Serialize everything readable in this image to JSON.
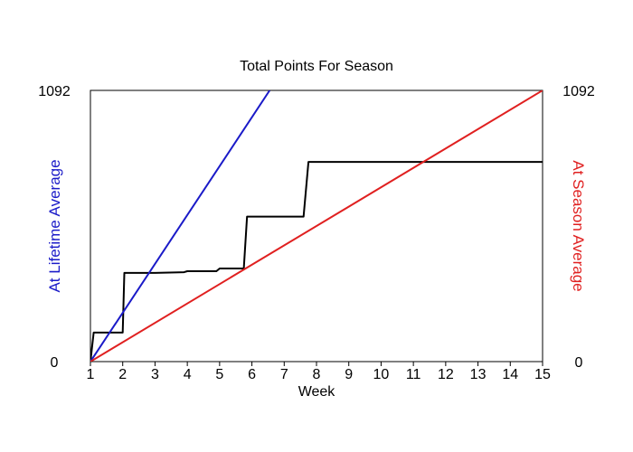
{
  "chart_data": {
    "type": "line",
    "title": "Total Points For Season",
    "xlabel": "Week",
    "ylabel_left": "At Lifetime Average",
    "ylabel_right": "At Season Average",
    "x_ticks": [
      "1",
      "2",
      "3",
      "4",
      "5",
      "6",
      "7",
      "8",
      "9",
      "10",
      "11",
      "12",
      "13",
      "14",
      "15"
    ],
    "xlim": [
      1,
      15
    ],
    "ylim": [
      0,
      1092
    ],
    "y_ticks_left": [
      "0",
      "1092"
    ],
    "y_ticks_right": [
      "0",
      "1092"
    ],
    "grid": false,
    "colors": {
      "lifetime": "#1a1ac8",
      "season": "#e02020",
      "actual": "#000000"
    },
    "series": [
      {
        "key": "actual",
        "x": [
          1,
          1.1,
          2.0,
          2.05,
          3.0,
          3.9,
          4.0,
          4.9,
          5.0,
          5.75,
          5.85,
          7.6,
          7.75,
          15
        ],
        "y": [
          0,
          117,
          117,
          357,
          357,
          360,
          364,
          364,
          375,
          375,
          584,
          584,
          804,
          804
        ]
      },
      {
        "key": "lifetime",
        "x": [
          1,
          6.55
        ],
        "y": [
          0,
          1092
        ]
      },
      {
        "key": "season",
        "x": [
          1,
          15
        ],
        "y": [
          0,
          1092
        ]
      }
    ]
  }
}
